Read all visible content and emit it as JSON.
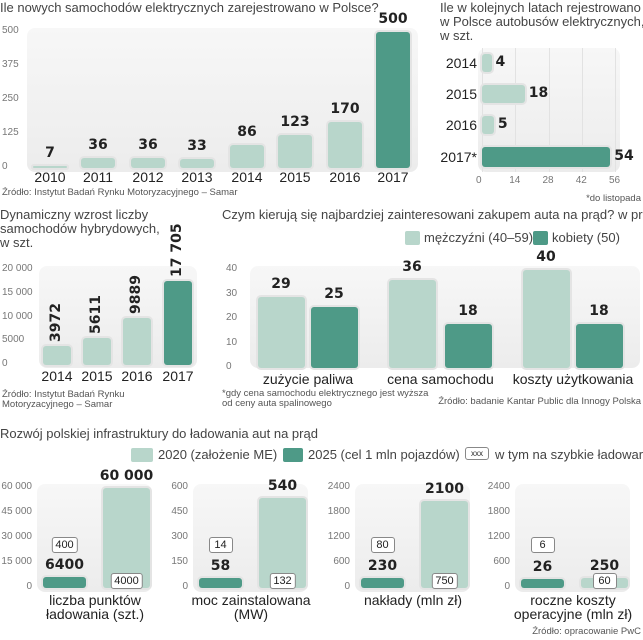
{
  "colors": {
    "light": "#b8d6cb",
    "dark": "#4e9a87"
  },
  "chart_data": [
    {
      "type": "bar",
      "title": "Ile nowych samochodów elektrycznych zarejestrowano w Polsce?",
      "categories": [
        "2010",
        "2011",
        "2012",
        "2013",
        "2014",
        "2015",
        "2016",
        "2017"
      ],
      "values": [
        7,
        36,
        36,
        33,
        86,
        123,
        170,
        500
      ],
      "highlight": "2017",
      "yticks": [
        "0",
        "125",
        "250",
        "375",
        "500"
      ],
      "ylim": [
        0,
        500
      ],
      "source": "Źródło: Instytut Badań Rynku Motoryzacyjnego – Samar"
    },
    {
      "type": "bar",
      "orientation": "horizontal",
      "title": [
        "Ile w kolejnych latach rejestrowano",
        "w Polsce autobusów elektrycznych,",
        "w szt."
      ],
      "categories": [
        "2014",
        "2015",
        "2016",
        "2017*"
      ],
      "values": [
        4,
        18,
        5,
        54
      ],
      "highlight": "2017*",
      "xticks": [
        "0",
        "14",
        "28",
        "42",
        "56"
      ],
      "xlim": [
        0,
        56
      ],
      "note": "*do listopada"
    },
    {
      "type": "bar",
      "title": [
        "Dynamiczny wzrost liczby",
        "samochodów hybrydowych,",
        "w szt."
      ],
      "categories": [
        "2014",
        "2015",
        "2016",
        "2017"
      ],
      "values": [
        3972,
        5611,
        9889,
        17705
      ],
      "labels": [
        "3972",
        "5611",
        "9889",
        "17 705"
      ],
      "highlight": "2017",
      "yticks": [
        "0",
        "5000",
        "10 000",
        "15 000",
        "20 000"
      ],
      "ylim": [
        0,
        20000
      ],
      "source": [
        "Źródło: Instytut Badań Rynku",
        "Motoryzacyjnego – Samar"
      ]
    },
    {
      "type": "bar",
      "title": "Czym kierują się najbardziej zainteresowani zakupem auta na prąd? w proc.",
      "categories": [
        "zużycie paliwa*",
        "cena samochodu",
        "koszty użytkowania"
      ],
      "category_labels": [
        "zużycie paliwa",
        "cena samochodu",
        "koszty użytkowania"
      ],
      "series": [
        {
          "name": "mężczyźni (40–59)",
          "values": [
            29,
            36,
            40
          ]
        },
        {
          "name": "kobiety (50)",
          "values": [
            25,
            18,
            18
          ]
        }
      ],
      "yticks": [
        "0",
        "10",
        "20",
        "30",
        "40"
      ],
      "ylim": [
        0,
        40
      ],
      "legend": "top-right",
      "footnote": [
        "*gdy cena samochodu elektrycznego jest wyższa",
        "od ceny auta spalinowego"
      ],
      "source": "Źródło: badanie Kantar Public dla Innogy Polska"
    },
    {
      "type": "bar",
      "title": "Rozwój polskiej infrastruktury do ładowania aut na prąd",
      "legend": "top-right",
      "legend_entries": [
        "2020 (założenie ME)",
        "2025 (cel 1 mln pojazdów)",
        "w tym na szybkie ładowarki"
      ],
      "legend_box": "xxx",
      "panels": [
        {
          "label": [
            "liczba punktów",
            "ładowania (szt.)"
          ],
          "yticks": [
            "0",
            "15 000",
            "30 000",
            "45 000",
            "60 000"
          ],
          "ylim": [
            0,
            60000
          ],
          "dark": {
            "value": 6400,
            "label": "6400",
            "fast": "400"
          },
          "light": {
            "value": 60000,
            "label": "60 000",
            "fast": "4000"
          }
        },
        {
          "label": [
            "moc zainstalowana",
            "(MW)"
          ],
          "yticks": [
            "0",
            "150",
            "300",
            "450",
            "600"
          ],
          "ylim": [
            0,
            600
          ],
          "dark": {
            "value": 58,
            "label": "58",
            "fast": "14"
          },
          "light": {
            "value": 540,
            "label": "540",
            "fast": "132"
          }
        },
        {
          "label": [
            "nakłady (mln zł)",
            ""
          ],
          "yticks": [
            "0",
            "600",
            "1200",
            "1800",
            "2400"
          ],
          "ylim": [
            0,
            2400
          ],
          "dark": {
            "value": 230,
            "label": "230",
            "fast": "80"
          },
          "light": {
            "value": 2100,
            "label": "2100",
            "fast": "750"
          }
        },
        {
          "label": [
            "roczne koszty",
            "operacyjne (mln zł)"
          ],
          "yticks": [
            "0",
            "600",
            "1200",
            "1800",
            "2400"
          ],
          "ylim": [
            0,
            2400
          ],
          "dark": {
            "value": 26,
            "label": "26",
            "fast": "6"
          },
          "light": {
            "value": 250,
            "label": "250",
            "fast": "60"
          }
        }
      ],
      "source": "Źródło: opracowanie PwC"
    }
  ]
}
